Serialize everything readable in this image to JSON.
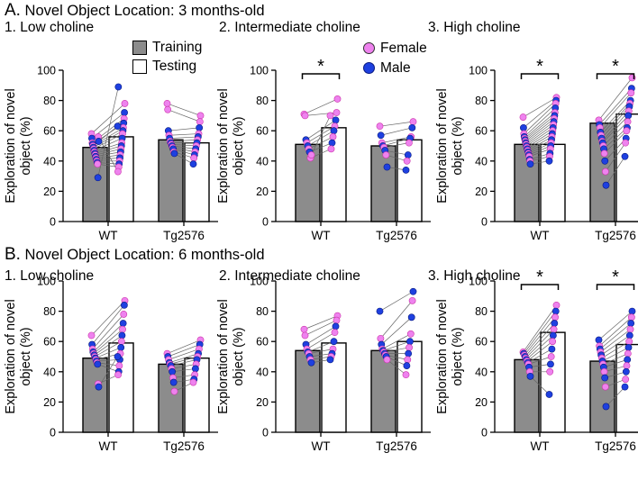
{
  "section_a": {
    "label": "A.",
    "title": "Novel Object Location: 3 months-old"
  },
  "section_b": {
    "label": "B.",
    "title": "Novel Object Location:  6 months-old"
  },
  "legend": {
    "training": "Training",
    "testing": "Testing",
    "female": "Female",
    "male": "Male",
    "colors": {
      "training_bar": "#8c8c8c",
      "testing_bar": "#ffffff",
      "female": "#ee82ee",
      "male": "#1e40e0",
      "line": "#666666"
    }
  },
  "chart_data": [
    {
      "type": "bar",
      "panel": "A1",
      "title": "1. Low choline",
      "ylabel": "Exploration of novel object (%)",
      "ylim": [
        0,
        100
      ],
      "yticks": [
        0,
        20,
        40,
        60,
        80,
        100
      ],
      "categories": [
        "WT",
        "Tg2576"
      ],
      "series": [
        {
          "name": "Training",
          "values": [
            49,
            54
          ]
        },
        {
          "name": "Testing",
          "values": [
            56,
            52
          ]
        }
      ],
      "significance": [],
      "pairs": [
        [
          [
            58,
            78,
            "f"
          ],
          [
            55,
            72,
            "m"
          ],
          [
            52,
            68,
            "f"
          ],
          [
            51,
            65,
            "m"
          ],
          [
            50,
            62,
            "f"
          ],
          [
            49,
            60,
            "m"
          ],
          [
            48,
            58,
            "f"
          ],
          [
            47,
            55,
            "m"
          ],
          [
            46,
            52,
            "f"
          ],
          [
            45,
            50,
            "m"
          ],
          [
            44,
            48,
            "f"
          ],
          [
            43,
            46,
            "m"
          ],
          [
            42,
            44,
            "f"
          ],
          [
            41,
            42,
            "m"
          ],
          [
            40,
            40,
            "f"
          ],
          [
            39,
            38,
            "m"
          ],
          [
            38,
            36,
            "f"
          ],
          [
            29,
            89,
            "m"
          ],
          [
            56,
            33,
            "f"
          ],
          [
            53,
            63,
            "m"
          ]
        ],
        [
          [
            78,
            70,
            "f"
          ],
          [
            74,
            66,
            "f"
          ],
          [
            60,
            62,
            "m"
          ],
          [
            57,
            58,
            "f"
          ],
          [
            55,
            56,
            "m"
          ],
          [
            53,
            54,
            "f"
          ],
          [
            52,
            52,
            "m"
          ],
          [
            51,
            50,
            "f"
          ],
          [
            50,
            48,
            "m"
          ],
          [
            49,
            46,
            "f"
          ],
          [
            48,
            44,
            "m"
          ],
          [
            46,
            42,
            "f"
          ],
          [
            45,
            38,
            "m"
          ]
        ]
      ]
    },
    {
      "type": "bar",
      "panel": "A2",
      "title": "2. Intermediate choline",
      "ylabel": "Exploration of novel object (%)",
      "ylim": [
        0,
        100
      ],
      "yticks": [
        0,
        20,
        40,
        60,
        80,
        100
      ],
      "categories": [
        "WT",
        "Tg2576"
      ],
      "series": [
        {
          "name": "Training",
          "values": [
            51,
            50
          ]
        },
        {
          "name": "Testing",
          "values": [
            62,
            54
          ]
        }
      ],
      "significance": [
        {
          "category": "WT",
          "label": "*"
        }
      ],
      "pairs": [
        [
          [
            71,
            81,
            "f"
          ],
          [
            70,
            72,
            "f"
          ],
          [
            54,
            67,
            "m"
          ],
          [
            52,
            63,
            "f"
          ],
          [
            50,
            60,
            "m"
          ],
          [
            48,
            56,
            "f"
          ],
          [
            46,
            52,
            "m"
          ],
          [
            42,
            48,
            "f"
          ],
          [
            44,
            70,
            "f"
          ]
        ],
        [
          [
            63,
            66,
            "f"
          ],
          [
            57,
            62,
            "m"
          ],
          [
            52,
            56,
            "f"
          ],
          [
            50,
            55,
            "m"
          ],
          [
            49,
            52,
            "f"
          ],
          [
            47,
            44,
            "m"
          ],
          [
            44,
            40,
            "f"
          ],
          [
            36,
            34,
            "m"
          ]
        ]
      ]
    },
    {
      "type": "bar",
      "panel": "A3",
      "title": "3. High choline",
      "ylabel": "Exploration of novel object (%)",
      "ylim": [
        0,
        100
      ],
      "yticks": [
        0,
        20,
        40,
        60,
        80,
        100
      ],
      "categories": [
        "WT",
        "Tg2576"
      ],
      "series": [
        {
          "name": "Training",
          "values": [
            51,
            65
          ]
        },
        {
          "name": "Testing",
          "values": [
            51,
            71
          ]
        }
      ],
      "significance": [
        {
          "category": "WT",
          "label": "*"
        },
        {
          "category": "Tg2576",
          "label": "*"
        }
      ],
      "pairs": [
        [
          [
            69,
            82,
            "f"
          ],
          [
            62,
            80,
            "m"
          ],
          [
            58,
            78,
            "f"
          ],
          [
            56,
            75,
            "m"
          ],
          [
            55,
            72,
            "f"
          ],
          [
            54,
            70,
            "m"
          ],
          [
            53,
            68,
            "f"
          ],
          [
            52,
            66,
            "m"
          ],
          [
            51,
            64,
            "f"
          ],
          [
            50,
            62,
            "m"
          ],
          [
            49,
            60,
            "f"
          ],
          [
            48,
            58,
            "m"
          ],
          [
            47,
            56,
            "f"
          ],
          [
            46,
            54,
            "m"
          ],
          [
            45,
            52,
            "f"
          ],
          [
            44,
            50,
            "m"
          ],
          [
            43,
            48,
            "f"
          ],
          [
            41,
            45,
            "m"
          ],
          [
            40,
            43,
            "f"
          ],
          [
            38,
            40,
            "m"
          ]
        ],
        [
          [
            67,
            95,
            "f"
          ],
          [
            64,
            88,
            "m"
          ],
          [
            62,
            85,
            "f"
          ],
          [
            59,
            80,
            "m"
          ],
          [
            57,
            78,
            "f"
          ],
          [
            55,
            76,
            "m"
          ],
          [
            53,
            73,
            "f"
          ],
          [
            52,
            70,
            "m"
          ],
          [
            50,
            66,
            "f"
          ],
          [
            48,
            62,
            "m"
          ],
          [
            45,
            60,
            "f"
          ],
          [
            40,
            55,
            "m"
          ],
          [
            33,
            52,
            "f"
          ],
          [
            24,
            43,
            "m"
          ]
        ]
      ]
    },
    {
      "type": "bar",
      "panel": "B1",
      "title": "1. Low choline",
      "ylabel": "Exploration of novel object (%)",
      "ylim": [
        0,
        100
      ],
      "yticks": [
        0,
        20,
        40,
        60,
        80,
        100
      ],
      "categories": [
        "WT",
        "Tg2576"
      ],
      "series": [
        {
          "name": "Training",
          "values": [
            49,
            45
          ]
        },
        {
          "name": "Testing",
          "values": [
            59,
            49
          ]
        }
      ],
      "significance": [],
      "pairs": [
        [
          [
            64,
            87,
            "f"
          ],
          [
            58,
            84,
            "m"
          ],
          [
            55,
            78,
            "f"
          ],
          [
            53,
            72,
            "m"
          ],
          [
            52,
            68,
            "f"
          ],
          [
            51,
            64,
            "m"
          ],
          [
            50,
            60,
            "f"
          ],
          [
            49,
            56,
            "m"
          ],
          [
            48,
            52,
            "f"
          ],
          [
            47,
            48,
            "m"
          ],
          [
            46,
            44,
            "f"
          ],
          [
            45,
            40,
            "m"
          ],
          [
            32,
            38,
            "f"
          ],
          [
            30,
            50,
            "m"
          ]
        ],
        [
          [
            52,
            61,
            "f"
          ],
          [
            50,
            58,
            "m"
          ],
          [
            48,
            55,
            "f"
          ],
          [
            46,
            52,
            "m"
          ],
          [
            45,
            50,
            "f"
          ],
          [
            44,
            48,
            "m"
          ],
          [
            42,
            45,
            "f"
          ],
          [
            40,
            42,
            "m"
          ],
          [
            36,
            38,
            "f"
          ],
          [
            33,
            35,
            "m"
          ],
          [
            27,
            33,
            "f"
          ]
        ]
      ]
    },
    {
      "type": "bar",
      "panel": "B2",
      "title": "2. Intermediate choline",
      "ylabel": "Exploration of novel object (%)",
      "ylim": [
        0,
        100
      ],
      "yticks": [
        0,
        20,
        40,
        60,
        80,
        100
      ],
      "categories": [
        "WT",
        "Tg2576"
      ],
      "series": [
        {
          "name": "Training",
          "values": [
            54,
            54
          ]
        },
        {
          "name": "Testing",
          "values": [
            59,
            60
          ]
        }
      ],
      "significance": [],
      "pairs": [
        [
          [
            68,
            77,
            "f"
          ],
          [
            64,
            74,
            "f"
          ],
          [
            58,
            70,
            "m"
          ],
          [
            55,
            66,
            "f"
          ],
          [
            53,
            60,
            "m"
          ],
          [
            52,
            55,
            "f"
          ],
          [
            50,
            52,
            "m"
          ],
          [
            48,
            50,
            "f"
          ],
          [
            46,
            48,
            "m"
          ]
        ],
        [
          [
            80,
            93,
            "m"
          ],
          [
            62,
            87,
            "f"
          ],
          [
            58,
            76,
            "m"
          ],
          [
            55,
            65,
            "f"
          ],
          [
            54,
            60,
            "m"
          ],
          [
            53,
            56,
            "f"
          ],
          [
            52,
            52,
            "m"
          ],
          [
            51,
            48,
            "f"
          ],
          [
            50,
            44,
            "m"
          ],
          [
            48,
            38,
            "f"
          ]
        ]
      ]
    },
    {
      "type": "bar",
      "panel": "B3",
      "title": "3. High choline",
      "ylabel": "Exploration of novel object (%)",
      "ylim": [
        0,
        100
      ],
      "yticks": [
        0,
        20,
        40,
        60,
        80,
        100
      ],
      "categories": [
        "WT",
        "Tg2576"
      ],
      "series": [
        {
          "name": "Training",
          "values": [
            48,
            47
          ]
        },
        {
          "name": "Testing",
          "values": [
            66,
            58
          ]
        }
      ],
      "significance": [
        {
          "category": "WT",
          "label": "*"
        },
        {
          "category": "Tg2576",
          "label": "*"
        }
      ],
      "pairs": [
        [
          [
            53,
            84,
            "f"
          ],
          [
            52,
            80,
            "m"
          ],
          [
            51,
            76,
            "f"
          ],
          [
            50,
            72,
            "m"
          ],
          [
            49,
            68,
            "f"
          ],
          [
            48,
            64,
            "m"
          ],
          [
            47,
            60,
            "f"
          ],
          [
            46,
            55,
            "m"
          ],
          [
            45,
            50,
            "f"
          ],
          [
            43,
            45,
            "m"
          ],
          [
            40,
            40,
            "f"
          ],
          [
            37,
            25,
            "m"
          ]
        ],
        [
          [
            61,
            80,
            "m"
          ],
          [
            57,
            76,
            "f"
          ],
          [
            55,
            72,
            "m"
          ],
          [
            53,
            68,
            "f"
          ],
          [
            51,
            64,
            "m"
          ],
          [
            49,
            60,
            "f"
          ],
          [
            47,
            56,
            "m"
          ],
          [
            45,
            52,
            "f"
          ],
          [
            43,
            48,
            "m"
          ],
          [
            40,
            44,
            "f"
          ],
          [
            36,
            40,
            "m"
          ],
          [
            30,
            35,
            "f"
          ],
          [
            17,
            30,
            "m"
          ]
        ]
      ]
    }
  ]
}
